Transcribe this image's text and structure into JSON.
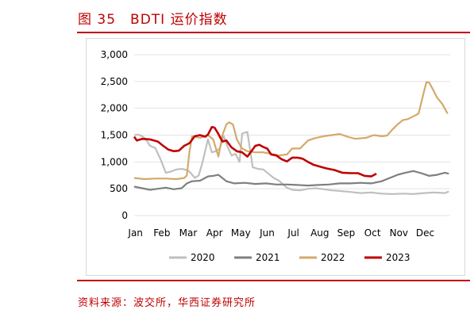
{
  "figure": {
    "title": "图 35　BDTI 运价指数",
    "source": "资料来源：波交所，华西证券研究所"
  },
  "colors": {
    "accent": "#c00000",
    "s2020": "#bfbfbf",
    "s2021": "#7f7f7f",
    "s2022": "#d4a96a",
    "s2023": "#c00000"
  },
  "chart_data": {
    "type": "line",
    "title": "",
    "xlabel": "",
    "ylabel": "",
    "ylim": [
      0,
      3000
    ],
    "yticks": [
      0,
      500,
      1000,
      1500,
      2000,
      2500,
      3000
    ],
    "ytick_labels": [
      "0",
      "500",
      "1,000",
      "1,500",
      "2,000",
      "2,500",
      "3,000"
    ],
    "xlim": [
      0,
      12
    ],
    "xtick_labels": [
      "Jan",
      "Feb",
      "Mar",
      "Apr",
      "May",
      "Jun",
      "Jul",
      "Aug",
      "Sep",
      "Oct",
      "Nov",
      "Dec"
    ],
    "grid": "horizontal",
    "legend": "bottom",
    "series": [
      {
        "name": "2020",
        "color_key": "s2020",
        "x": [
          0,
          0.15,
          0.3,
          0.45,
          0.6,
          0.8,
          1.0,
          1.2,
          1.4,
          1.6,
          1.8,
          2.0,
          2.1,
          2.3,
          2.45,
          2.6,
          2.8,
          2.95,
          3.1,
          3.25,
          3.4,
          3.55,
          3.7,
          3.85,
          4.0,
          4.1,
          4.3,
          4.5,
          4.7,
          4.9,
          5.1,
          5.3,
          5.5,
          5.7,
          5.8,
          6.0,
          6.3,
          6.6,
          6.9,
          7.2,
          7.5,
          7.8,
          8.2,
          8.6,
          9.0,
          9.4,
          9.8,
          10.2,
          10.6,
          11.0,
          11.4,
          11.8,
          11.95
        ],
        "y": [
          1500,
          1510,
          1480,
          1420,
          1300,
          1260,
          1050,
          800,
          820,
          860,
          870,
          850,
          820,
          700,
          750,
          1000,
          1420,
          1180,
          1200,
          1250,
          1480,
          1280,
          1120,
          1150,
          1000,
          1530,
          1560,
          900,
          870,
          860,
          780,
          700,
          650,
          560,
          520,
          480,
          470,
          500,
          510,
          490,
          470,
          460,
          440,
          420,
          430,
          410,
          400,
          410,
          400,
          420,
          430,
          420,
          450
        ]
      },
      {
        "name": "2021",
        "color_key": "s2021",
        "x": [
          0,
          0.3,
          0.6,
          0.9,
          1.2,
          1.5,
          1.8,
          2.0,
          2.2,
          2.5,
          2.8,
          3.0,
          3.2,
          3.5,
          3.8,
          4.2,
          4.6,
          5.0,
          5.4,
          5.8,
          6.2,
          6.6,
          7.0,
          7.4,
          7.8,
          8.2,
          8.6,
          9.0,
          9.4,
          9.7,
          10.0,
          10.3,
          10.6,
          10.9,
          11.2,
          11.5,
          11.8,
          11.95
        ],
        "y": [
          540,
          510,
          480,
          500,
          520,
          490,
          510,
          600,
          640,
          650,
          730,
          740,
          760,
          640,
          600,
          610,
          590,
          600,
          580,
          580,
          570,
          560,
          570,
          580,
          600,
          600,
          610,
          600,
          640,
          700,
          760,
          800,
          830,
          790,
          740,
          760,
          800,
          780
        ]
      },
      {
        "name": "2022",
        "color_key": "s2022",
        "x": [
          0,
          0.4,
          0.8,
          1.2,
          1.6,
          1.9,
          2.0,
          2.1,
          2.2,
          2.5,
          2.8,
          3.0,
          3.2,
          3.35,
          3.5,
          3.6,
          3.75,
          3.9,
          4.1,
          4.3,
          4.6,
          4.9,
          5.2,
          5.5,
          5.8,
          6.0,
          6.3,
          6.6,
          6.9,
          7.2,
          7.5,
          7.8,
          8.1,
          8.4,
          8.8,
          9.1,
          9.4,
          9.6,
          9.8,
          10.0,
          10.2,
          10.4,
          10.6,
          10.8,
          10.9,
          11.0,
          11.1,
          11.2,
          11.35,
          11.5,
          11.7,
          11.9
        ],
        "y": [
          700,
          680,
          690,
          690,
          680,
          700,
          750,
          1200,
          1480,
          1450,
          1500,
          1420,
          1100,
          1500,
          1700,
          1740,
          1700,
          1420,
          1250,
          1200,
          1180,
          1180,
          1150,
          1120,
          1140,
          1250,
          1250,
          1400,
          1450,
          1480,
          1500,
          1520,
          1470,
          1430,
          1450,
          1500,
          1480,
          1490,
          1600,
          1700,
          1780,
          1800,
          1850,
          1900,
          2100,
          2300,
          2490,
          2480,
          2350,
          2200,
          2080,
          1900
        ]
      },
      {
        "name": "2023",
        "color_key": "s2023",
        "x": [
          0,
          0.1,
          0.3,
          0.6,
          0.9,
          1.1,
          1.3,
          1.5,
          1.7,
          1.9,
          2.1,
          2.3,
          2.5,
          2.7,
          2.8,
          2.95,
          3.05,
          3.2,
          3.35,
          3.5,
          3.7,
          3.9,
          4.1,
          4.3,
          4.45,
          4.6,
          4.75,
          4.9,
          5.05,
          5.2,
          5.4,
          5.6,
          5.8,
          6.0,
          6.2,
          6.4,
          6.6,
          6.8,
          7.0,
          7.3,
          7.6,
          7.9,
          8.2,
          8.5,
          8.75,
          9.0,
          9.2
        ],
        "y": [
          1470,
          1400,
          1430,
          1420,
          1380,
          1300,
          1230,
          1200,
          1210,
          1300,
          1350,
          1480,
          1500,
          1470,
          1510,
          1650,
          1640,
          1520,
          1380,
          1400,
          1270,
          1200,
          1180,
          1100,
          1200,
          1300,
          1320,
          1280,
          1250,
          1140,
          1120,
          1050,
          1010,
          1080,
          1080,
          1060,
          1000,
          950,
          920,
          880,
          850,
          800,
          790,
          790,
          740,
          730,
          780
        ]
      }
    ]
  }
}
